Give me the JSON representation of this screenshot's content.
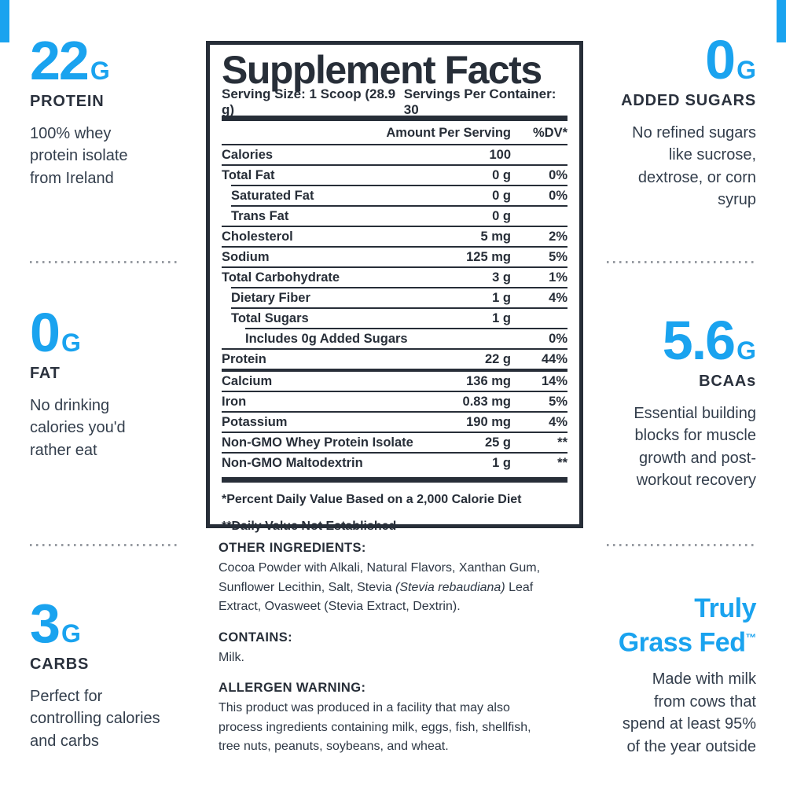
{
  "colors": {
    "accent": "#1aa3ef",
    "dark": "#272e38",
    "divider_dots": "#979ba2"
  },
  "callouts": {
    "left": [
      {
        "value": "22",
        "unit": "G",
        "label": "PROTEIN",
        "desc_lines": [
          "100% whey",
          "protein isolate",
          "from Ireland"
        ]
      },
      {
        "value": "0",
        "unit": "G",
        "label": "FAT",
        "desc_lines": [
          "No drinking",
          "calories you'd",
          "rather eat"
        ]
      },
      {
        "value": "3",
        "unit": "G",
        "label": "CARBS",
        "desc_lines": [
          "Perfect for",
          "controlling calories",
          "and carbs"
        ]
      }
    ],
    "right": [
      {
        "value": "0",
        "unit": "G",
        "label": "ADDED SUGARS",
        "desc_lines": [
          "No refined sugars",
          "like sucrose,",
          "dextrose, or corn",
          "syrup"
        ]
      },
      {
        "value": "5.6",
        "unit": "G",
        "label": "BCAAs",
        "desc_lines": [
          "Essential building",
          "blocks for muscle",
          "growth and post-",
          "workout recovery"
        ]
      },
      {
        "title_line1": "Truly",
        "title_line2": "Grass Fed",
        "title_tm": "™",
        "desc_lines": [
          "Made with milk",
          "from cows that",
          "spend at least 95%",
          "of the year outside"
        ]
      }
    ]
  },
  "panel": {
    "title": "Supplement Facts",
    "serving_size": "Serving Size: 1 Scoop (28.9 g)",
    "servings_per_container": "Servings Per Container: 30",
    "col_amount": "Amount Per Serving",
    "col_dv": "%DV*",
    "rows": [
      {
        "label": "Calories",
        "amount": "100",
        "dv": "",
        "indent": 0
      },
      {
        "label": "Total Fat",
        "amount": "0 g",
        "dv": "0%",
        "indent": 0
      },
      {
        "label": "Saturated Fat",
        "amount": "0 g",
        "dv": "0%",
        "indent": 1
      },
      {
        "label": "Trans Fat",
        "amount": "0 g",
        "dv": "",
        "indent": 1
      },
      {
        "label": "Cholesterol",
        "amount": "5 mg",
        "dv": "2%",
        "indent": 0
      },
      {
        "label": "Sodium",
        "amount": "125 mg",
        "dv": "5%",
        "indent": 0
      },
      {
        "label": "Total Carbohydrate",
        "amount": "3 g",
        "dv": "1%",
        "indent": 0
      },
      {
        "label": "Dietary Fiber",
        "amount": "1 g",
        "dv": "4%",
        "indent": 1
      },
      {
        "label": "Total Sugars",
        "amount": "1 g",
        "dv": "",
        "indent": 1
      },
      {
        "label": "Includes 0g Added Sugars",
        "amount": "",
        "dv": "0%",
        "indent": 2
      },
      {
        "label": "Protein",
        "amount": "22 g",
        "dv": "44%",
        "indent": 0
      },
      {
        "label": "Calcium",
        "amount": "136 mg",
        "dv": "14%",
        "indent": 0,
        "thick_top": true
      },
      {
        "label": "Iron",
        "amount": "0.83 mg",
        "dv": "5%",
        "indent": 0
      },
      {
        "label": "Potassium",
        "amount": "190 mg",
        "dv": "4%",
        "indent": 0
      },
      {
        "label": "Non-GMO Whey Protein Isolate",
        "amount": "25 g",
        "dv": "**",
        "indent": 0
      },
      {
        "label": "Non-GMO Maltodextrin",
        "amount": "1 g",
        "dv": "**",
        "indent": 0
      }
    ],
    "footnotes": [
      "*Percent Daily Value Based on a 2,000 Calorie Diet",
      "**Daily Value Not Established"
    ]
  },
  "info": {
    "other_heading": "OTHER INGREDIENTS:",
    "other_l1": "Cocoa Powder with Alkali, Natural Flavors, Xanthan Gum,",
    "other_l2_pre": "Sunflower Lecithin, Salt, Stevia ",
    "other_l2_italic": "(Stevia rebaudiana)",
    "other_l2_post": " Leaf",
    "other_l3": "Extract, Ovasweet (Stevia Extract, Dextrin).",
    "contains_heading": "CONTAINS:",
    "contains_body": "Milk.",
    "allergen_heading": "ALLERGEN WARNING:",
    "allergen_lines": [
      "This product was produced in a facility that may also",
      "process ingredients containing milk, eggs, fish, shellfish,",
      "tree nuts, peanuts, soybeans, and wheat."
    ]
  }
}
